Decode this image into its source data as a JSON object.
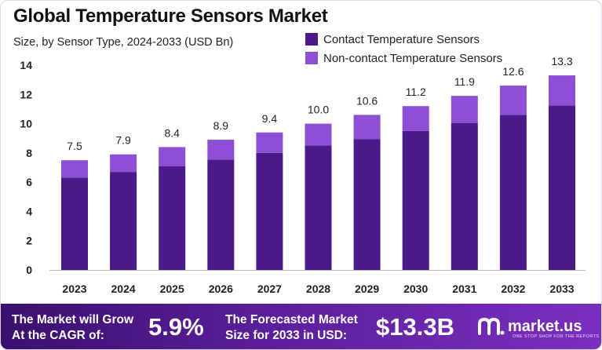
{
  "title": "Global Temperature Sensors Market",
  "subtitle": "Size, by Sensor Type, 2024-2033 (USD Bn)",
  "colors": {
    "contact": "#4b1a8a",
    "noncontact": "#8e4fd6",
    "axis_text": "#222222"
  },
  "chart_data": {
    "type": "bar",
    "stacked": true,
    "title": "Global Temperature Sensors Market",
    "subtitle": "Size, by Sensor Type, 2024-2033 (USD Bn)",
    "categories": [
      "2023",
      "2024",
      "2025",
      "2026",
      "2027",
      "2028",
      "2029",
      "2030",
      "2031",
      "2032",
      "2033"
    ],
    "series": [
      {
        "name": "Contact Temperature Sensors",
        "values": [
          6.3,
          6.7,
          7.1,
          7.55,
          8.0,
          8.5,
          8.95,
          9.5,
          10.05,
          10.6,
          11.25
        ]
      },
      {
        "name": "Non-contact Temperature Sensors",
        "values": [
          1.2,
          1.2,
          1.3,
          1.35,
          1.4,
          1.5,
          1.65,
          1.7,
          1.85,
          2.0,
          2.05
        ]
      }
    ],
    "totals": [
      "7.5",
      "7.9",
      "8.4",
      "8.9",
      "9.4",
      "10.0",
      "10.6",
      "11.2",
      "11.9",
      "12.6",
      "13.3"
    ],
    "ylim": [
      0,
      14
    ],
    "yticks": [
      "0",
      "2",
      "4",
      "6",
      "8",
      "10",
      "12",
      "14"
    ],
    "grid": false,
    "legend": "top-right"
  },
  "footer": {
    "cagr_line1": "The Market will Grow",
    "cagr_line2": "At the CAGR of:",
    "cagr_value": "5.9%",
    "forecast_line1": "The Forecasted Market",
    "forecast_line2": "Size for 2033 in USD:",
    "forecast_value": "$13.3B",
    "brand": "market.us",
    "tagline": "ONE STOP SHOP FOR THE REPORTS"
  }
}
